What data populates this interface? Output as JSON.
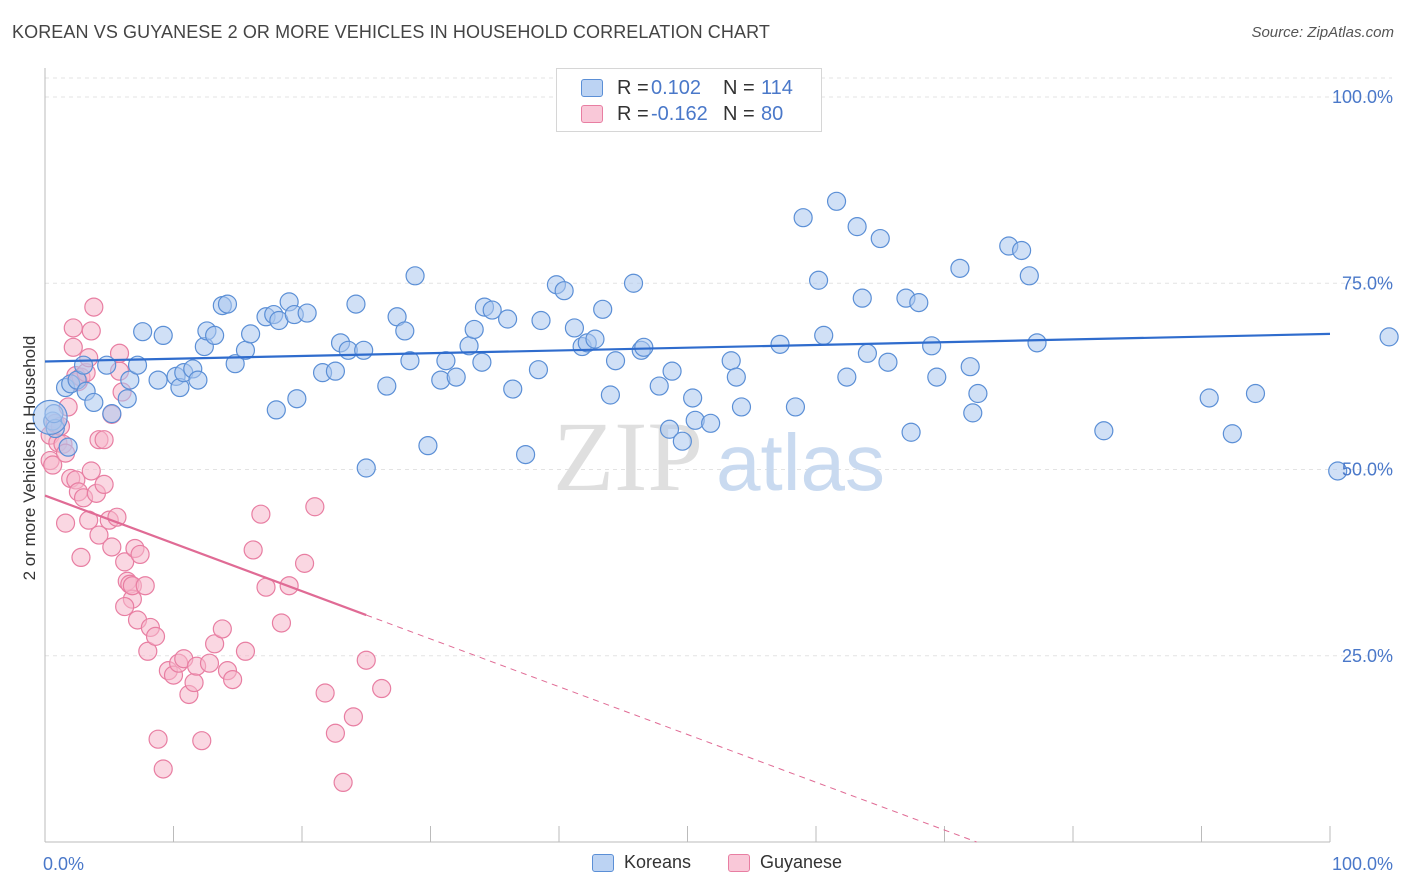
{
  "title": "KOREAN VS GUYANESE 2 OR MORE VEHICLES IN HOUSEHOLD CORRELATION CHART",
  "source": "Source: ZipAtlas.com",
  "watermark": {
    "zip": "ZIP",
    "atlas": "atlas"
  },
  "legend_top": {
    "rows": [
      {
        "r_label": "R =",
        "r_value": "0.102",
        "n_label": "N =",
        "n_value": "114"
      },
      {
        "r_label": "R =",
        "r_value": "-0.162",
        "n_label": "N =",
        "n_value": "80"
      }
    ]
  },
  "colors": {
    "blue_fill": "#a9c6ef",
    "blue_stroke": "#5b8fd6",
    "blue_line": "#2f6ccd",
    "pink_fill": "#f6b6cb",
    "pink_stroke": "#e87ea2",
    "pink_line": "#e06b95",
    "axis_label": "#4a78c9",
    "grid": "#e3e3e3"
  },
  "chart_data": {
    "type": "scatter",
    "title": "KOREAN VS GUYANESE 2 OR MORE VEHICLES IN HOUSEHOLD CORRELATION CHART",
    "xlabel": "",
    "ylabel": "2 or more Vehicles in Household",
    "xlim": [
      0,
      100
    ],
    "ylim": [
      0,
      105
    ],
    "x_tick_labels": [
      "0.0%",
      "100.0%"
    ],
    "y_ticks": [
      25,
      50,
      75,
      100
    ],
    "y_tick_labels": [
      "25.0%",
      "50.0%",
      "75.0%",
      "100.0%"
    ],
    "legend": [
      "Koreans",
      "Guyanese"
    ],
    "series": [
      {
        "name": "Koreans",
        "r": 0.102,
        "n": 114,
        "trend": {
          "x": [
            0,
            100
          ],
          "y": [
            64.5,
            68.2
          ],
          "dashed_from": null
        },
        "points": [
          [
            0.6,
            56.5
          ],
          [
            0.8,
            55.5
          ],
          [
            1.6,
            61
          ],
          [
            1.8,
            53
          ],
          [
            2.0,
            61.5
          ],
          [
            2.5,
            62
          ],
          [
            3,
            64
          ],
          [
            3.2,
            60.5
          ],
          [
            3.8,
            59
          ],
          [
            4.8,
            64
          ],
          [
            5.2,
            57.5
          ],
          [
            6.4,
            59.5
          ],
          [
            6.6,
            62
          ],
          [
            7.2,
            64
          ],
          [
            7.6,
            68.5
          ],
          [
            8.8,
            62
          ],
          [
            9.2,
            68
          ],
          [
            10.2,
            62.5
          ],
          [
            10.5,
            61
          ],
          [
            10.8,
            63
          ],
          [
            11.5,
            63.5
          ],
          [
            11.9,
            62
          ],
          [
            12.4,
            66.5
          ],
          [
            12.6,
            68.6
          ],
          [
            13.2,
            68
          ],
          [
            13.8,
            72
          ],
          [
            14.2,
            72.2
          ],
          [
            14.8,
            64.2
          ],
          [
            15.6,
            66
          ],
          [
            16.0,
            68.2
          ],
          [
            17.2,
            70.5
          ],
          [
            17.8,
            70.8
          ],
          [
            18,
            58
          ],
          [
            18.2,
            70
          ],
          [
            19,
            72.5
          ],
          [
            19.4,
            70.8
          ],
          [
            19.6,
            59.5
          ],
          [
            20.4,
            71
          ],
          [
            21.6,
            63
          ],
          [
            22.6,
            63.2
          ],
          [
            23.0,
            67
          ],
          [
            23.6,
            66
          ],
          [
            24.2,
            72.2
          ],
          [
            24.8,
            66
          ],
          [
            25,
            50.2
          ],
          [
            26.6,
            61.2
          ],
          [
            27.4,
            70.5
          ],
          [
            28.0,
            68.6
          ],
          [
            28.4,
            64.6
          ],
          [
            28.8,
            76
          ],
          [
            29.8,
            53.2
          ],
          [
            30.8,
            62
          ],
          [
            31.2,
            64.6
          ],
          [
            32.0,
            62.4
          ],
          [
            33.0,
            66.6
          ],
          [
            33.4,
            68.8
          ],
          [
            34.0,
            64.4
          ],
          [
            34.2,
            71.8
          ],
          [
            34.8,
            71.4
          ],
          [
            36.0,
            70.2
          ],
          [
            36.4,
            60.8
          ],
          [
            37.4,
            52
          ],
          [
            38.4,
            63.4
          ],
          [
            38.6,
            70
          ],
          [
            39.8,
            74.8
          ],
          [
            40.4,
            74
          ],
          [
            41.2,
            69
          ],
          [
            41.8,
            66.5
          ],
          [
            42.2,
            67
          ],
          [
            42.8,
            67.5
          ],
          [
            43.4,
            71.5
          ],
          [
            44.0,
            60
          ],
          [
            44.4,
            64.6
          ],
          [
            45.8,
            75
          ],
          [
            46.4,
            66
          ],
          [
            46.6,
            66.4
          ],
          [
            47.8,
            61.2
          ],
          [
            48.6,
            55.4
          ],
          [
            48.8,
            63.2
          ],
          [
            49.6,
            53.8
          ],
          [
            50.4,
            59.6
          ],
          [
            50.6,
            56.6
          ],
          [
            51.8,
            56.2
          ],
          [
            53.4,
            64.6
          ],
          [
            53.8,
            62.4
          ],
          [
            54.2,
            58.4
          ],
          [
            57.2,
            66.8
          ],
          [
            58.4,
            58.4
          ],
          [
            59.0,
            83.8
          ],
          [
            60.2,
            75.4
          ],
          [
            60.6,
            68
          ],
          [
            61.6,
            86
          ],
          [
            62.4,
            62.4
          ],
          [
            63.2,
            82.6
          ],
          [
            63.6,
            73
          ],
          [
            64.0,
            65.6
          ],
          [
            65.0,
            81
          ],
          [
            65.6,
            64.4
          ],
          [
            67,
            73
          ],
          [
            67.4,
            55
          ],
          [
            68,
            72.4
          ],
          [
            69.0,
            66.6
          ],
          [
            69.4,
            62.4
          ],
          [
            71.2,
            77
          ],
          [
            72,
            63.8
          ],
          [
            72.2,
            57.6
          ],
          [
            72.6,
            60.2
          ],
          [
            75,
            80
          ],
          [
            76,
            79.4
          ],
          [
            76.6,
            76
          ],
          [
            77.2,
            67
          ],
          [
            82.4,
            55.2
          ],
          [
            90.6,
            59.6
          ],
          [
            92.4,
            54.8
          ],
          [
            94.2,
            60.2
          ],
          [
            100.6,
            49.8
          ],
          [
            104.6,
            67.8
          ],
          [
            0.7,
            57.5
          ]
        ]
      },
      {
        "name": "Guyanese",
        "r": -0.162,
        "n": 80,
        "trend": {
          "x": [
            0,
            72.5
          ],
          "y": [
            46.5,
            0
          ],
          "dashed_from": 25
        },
        "points": [
          [
            0.4,
            54.6
          ],
          [
            0.4,
            51.2
          ],
          [
            0.6,
            50.6
          ],
          [
            0.8,
            56.2
          ],
          [
            1.0,
            53.6
          ],
          [
            1.2,
            55.8
          ],
          [
            1.4,
            53.4
          ],
          [
            1.6,
            52.2
          ],
          [
            1.8,
            58.4
          ],
          [
            2.2,
            66.4
          ],
          [
            2.2,
            69
          ],
          [
            2.4,
            62.6
          ],
          [
            2.6,
            61.8
          ],
          [
            2.8,
            62.4
          ],
          [
            3.2,
            63
          ],
          [
            3.4,
            65
          ],
          [
            3.6,
            68.6
          ],
          [
            3.8,
            71.8
          ],
          [
            2.0,
            48.8
          ],
          [
            2.4,
            48.6
          ],
          [
            2.6,
            47
          ],
          [
            3.0,
            46.2
          ],
          [
            3.4,
            43.2
          ],
          [
            3.6,
            49.8
          ],
          [
            4.0,
            46.8
          ],
          [
            4.6,
            48
          ],
          [
            4.2,
            41.2
          ],
          [
            5.2,
            39.6
          ],
          [
            5.0,
            43.2
          ],
          [
            4.2,
            54
          ],
          [
            4.6,
            54
          ],
          [
            5.2,
            57.4
          ],
          [
            5.8,
            63.2
          ],
          [
            5.8,
            65.6
          ],
          [
            6.0,
            60.4
          ],
          [
            5.6,
            43.6
          ],
          [
            6.2,
            37.6
          ],
          [
            6.4,
            35
          ],
          [
            6.6,
            34.6
          ],
          [
            6.8,
            32.6
          ],
          [
            7.0,
            39.4
          ],
          [
            6.2,
            31.6
          ],
          [
            6.8,
            34.4
          ],
          [
            7.4,
            38.6
          ],
          [
            7.8,
            34.4
          ],
          [
            7.2,
            29.8
          ],
          [
            8.0,
            25.6
          ],
          [
            8.2,
            28.8
          ],
          [
            8.6,
            27.6
          ],
          [
            8.8,
            13.8
          ],
          [
            9.2,
            9.8
          ],
          [
            9.6,
            23
          ],
          [
            10,
            22.4
          ],
          [
            10.4,
            24
          ],
          [
            10.8,
            24.6
          ],
          [
            11.2,
            19.8
          ],
          [
            11.6,
            21.4
          ],
          [
            11.8,
            23.6
          ],
          [
            12.2,
            13.6
          ],
          [
            12.8,
            24
          ],
          [
            13.2,
            26.6
          ],
          [
            13.8,
            28.6
          ],
          [
            14.2,
            23
          ],
          [
            14.6,
            21.8
          ],
          [
            15.6,
            25.6
          ],
          [
            16.2,
            39.2
          ],
          [
            16.8,
            44
          ],
          [
            17.2,
            34.2
          ],
          [
            18.4,
            29.4
          ],
          [
            19.0,
            34.4
          ],
          [
            20.2,
            37.4
          ],
          [
            21,
            45
          ],
          [
            21.8,
            20
          ],
          [
            22.6,
            14.6
          ],
          [
            23.2,
            8
          ],
          [
            24,
            16.8
          ],
          [
            25,
            24.4
          ],
          [
            26.2,
            20.6
          ],
          [
            1.6,
            42.8
          ],
          [
            2.8,
            38.2
          ]
        ]
      }
    ]
  },
  "bottom_legend": {
    "koreans": "Koreans",
    "guyanese": "Guyanese"
  },
  "x_axis": {
    "left": "0.0%",
    "right": "100.0%"
  }
}
